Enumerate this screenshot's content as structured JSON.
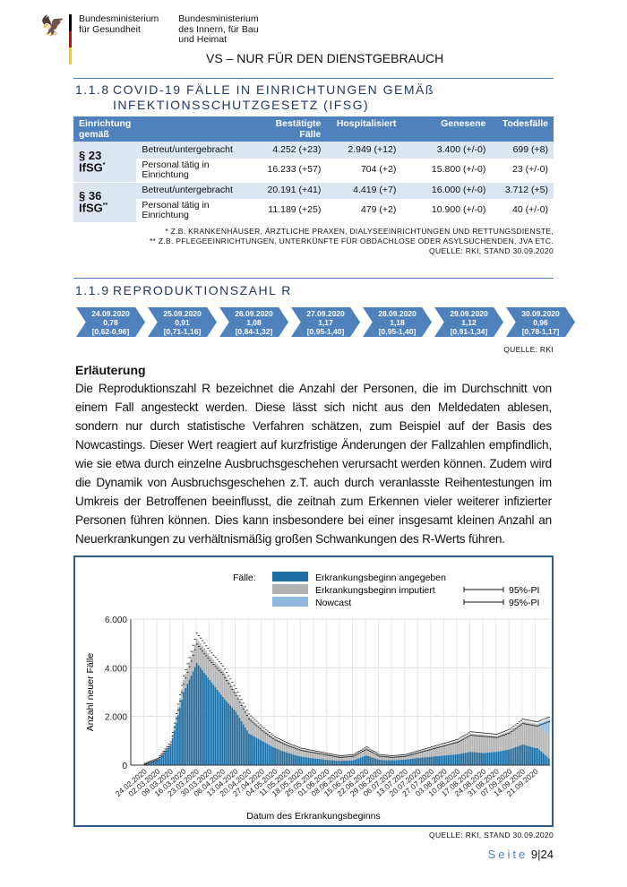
{
  "header": {
    "ministry1": [
      "Bundesministerium",
      "für Gesundheit"
    ],
    "ministry2": [
      "Bundesministerium",
      "des Innern, für Bau",
      "und Heimat"
    ],
    "classification": "VS – NUR FÜR DEN DIENSTGEBRAUCH"
  },
  "section1": {
    "number": "1.1.8",
    "title_line1": "COVID-19 FÄLLE IN EINRICHTUNGEN GEMÄß",
    "title_line2": "INFEKTIONSSCHUTZGESETZ (IFSG)",
    "table": {
      "headers": [
        "Einrichtung gemäß",
        "",
        "Bestätigte Fälle",
        "Hospitalisiert",
        "Genesene",
        "Todesfälle"
      ],
      "groups": [
        {
          "label": "§ 23 IfSG",
          "sup": "*",
          "rows": [
            [
              "Betreut/untergebracht",
              "4.252 (+23)",
              "2.949 (+12)",
              "3.400 (+/-0)",
              "699 (+8)"
            ],
            [
              "Personal tätig in Einrichtung",
              "16.233 (+57)",
              "704 (+2)",
              "15.800 (+/-0)",
              "23 (+/-0)"
            ]
          ]
        },
        {
          "label": "§ 36 IfSG",
          "sup": "**",
          "rows": [
            [
              "Betreut/untergebracht",
              "20.191 (+41)",
              "4.419 (+7)",
              "16.000 (+/-0)",
              "3.712 (+5)"
            ],
            [
              "Personal tätig in Einrichtung",
              "11.189 (+25)",
              "479 (+2)",
              "10.900 (+/-0)",
              "40 (+/-0)"
            ]
          ]
        }
      ]
    },
    "notes": [
      "* Z.B. KRANKENHÄUSER, ÄRZTLICHE PRAXEN, DIALYSEEINRICHTUNGEN UND RETTUNGSDIENSTE,",
      "** Z.B. PFLEGEEINRICHTUNGEN, UNTERKÜNFTE FÜR OBDACHLOSE ODER ASYLSUCHENDEN, JVA ETC.",
      "QUELLE: RKI, STAND 30.09.2020"
    ]
  },
  "section2": {
    "number": "1.1.9",
    "title": "REPRODUKTIONSZAHL R",
    "r_values": [
      {
        "date": "24.09.2020",
        "r": "0,78",
        "ci": "[0,62-0,96]"
      },
      {
        "date": "25.09.2020",
        "r": "0,91",
        "ci": "[0,71-1,16]"
      },
      {
        "date": "26.09.2020",
        "r": "1,08",
        "ci": "[0,84-1,32]"
      },
      {
        "date": "27.09.2020",
        "r": "1,17",
        "ci": "[0,95-1,40]"
      },
      {
        "date": "28.09.2020",
        "r": "1,18",
        "ci": "[0,95-1,40]"
      },
      {
        "date": "29.09.2020",
        "r": "1,12",
        "ci": "[0,91-1,34]"
      },
      {
        "date": "30.09.2020",
        "r": "0,96",
        "ci": "[0,78-1,17]"
      }
    ],
    "source": "QUELLE: RKI",
    "explanation_title": "Erläuterung",
    "explanation": "Die Reproduktionszahl R bezeichnet die Anzahl der Personen, die im Durchschnitt von einem Fall angesteckt werden. Diese lässt sich nicht aus den Meldedaten ablesen, sondern nur durch statistische Verfahren schätzen, zum Beispiel auf der Basis des Nowcastings. Dieser Wert reagiert auf kurzfristige Änderungen der Fallzahlen empfindlich, wie sie etwa durch einzelne Ausbruchsgeschehen verursacht werden können. Zudem wird die Dynamik von Ausbruchsgeschehen z.T. auch durch veranlasste Reihentestungen im Umkreis der Betroffenen beeinflusst, die zeitnah zum Erkennen vieler weiterer infizierter Personen führen können. Dies kann insbesondere bei einer insgesamt kleinen Anzahl an Neuerkrankungen zu verhältnismäßig großen Schwankungen des R-Werts führen.",
    "chart_source": "QUELLE: RKI, STAND 30.09.2020"
  },
  "chart_data": {
    "type": "bar",
    "stacked": true,
    "xlabel": "Datum des Erkrankungsbeginns",
    "ylabel": "Anzahl neuer Fälle",
    "ylim": [
      0,
      6000
    ],
    "yticks": [
      "0",
      "2.000",
      "4.000",
      "6.000"
    ],
    "grid": true,
    "legend_title": "Fälle:",
    "legend_placement": "top",
    "categories": [
      "24.02.2020",
      "02.03.2020",
      "09.03.2020",
      "16.03.2020",
      "23.03.2020",
      "30.03.2020",
      "06.04.2020",
      "13.04.2020",
      "20.04.2020",
      "27.04.2020",
      "04.05.2020",
      "11.05.2020",
      "18.05.2020",
      "25.05.2020",
      "01.06.2020",
      "08.06.2020",
      "15.06.2020",
      "22.06.2020",
      "29.06.2020",
      "06.07.2020",
      "13.07.2020",
      "20.07.2020",
      "27.07.2020",
      "03.08.2020",
      "10.08.2020",
      "17.08.2020",
      "24.08.2020",
      "31.08.2020",
      "07.09.2020",
      "14.09.2020",
      "21.09.2020"
    ],
    "series": [
      {
        "name": "Erkrankungsbeginn angegeben",
        "color": "#1f6fa5",
        "values": [
          40,
          200,
          800,
          3000,
          4200,
          3500,
          2800,
          2200,
          1300,
          1000,
          700,
          500,
          350,
          280,
          220,
          180,
          200,
          400,
          220,
          200,
          230,
          300,
          350,
          400,
          450,
          550,
          500,
          550,
          650,
          850,
          700
        ]
      },
      {
        "name": "Erkrankungsbeginn imputiert",
        "color": "#b3b3b3",
        "values": [
          10,
          50,
          100,
          500,
          1000,
          1000,
          1100,
          800,
          700,
          500,
          400,
          350,
          300,
          270,
          230,
          170,
          200,
          300,
          180,
          150,
          170,
          250,
          350,
          450,
          550,
          750,
          750,
          650,
          750,
          950,
          1000
        ]
      },
      {
        "name": "Nowcast",
        "color": "#8fb8dc",
        "values": [
          0,
          0,
          0,
          0,
          0,
          0,
          0,
          0,
          0,
          0,
          0,
          0,
          0,
          0,
          0,
          0,
          0,
          0,
          0,
          0,
          0,
          0,
          0,
          0,
          0,
          0,
          0,
          0,
          0,
          0,
          600
        ]
      }
    ],
    "interval_legend": [
      "95%-PI",
      "95%-PI"
    ]
  },
  "footer": {
    "page_word": "Seite",
    "page": "9",
    "total": "24"
  }
}
